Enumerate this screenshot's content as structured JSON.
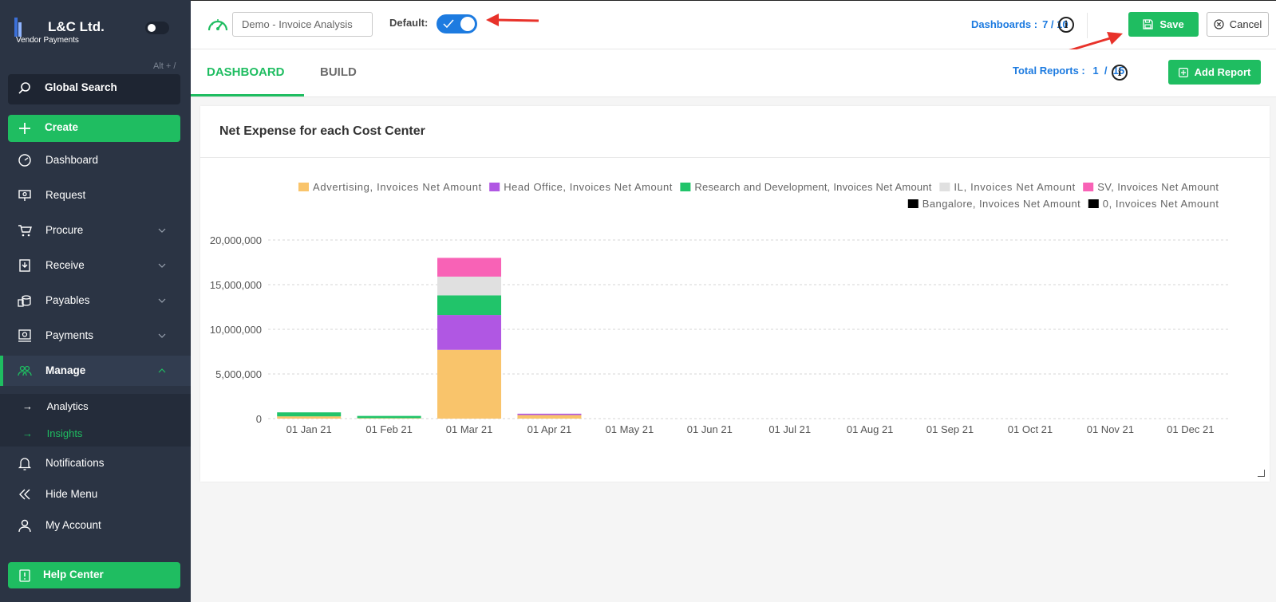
{
  "sidebar": {
    "brand_name": "L&C Ltd.",
    "brand_sub": "Vendor Payments",
    "shortcut_hint": "Alt + /",
    "search_label": "Global Search",
    "create_label": "Create",
    "items": [
      {
        "label": "Dashboard",
        "icon": "gauge-icon"
      },
      {
        "label": "Request",
        "icon": "request-icon"
      },
      {
        "label": "Procure",
        "icon": "cart-icon"
      },
      {
        "label": "Receive",
        "icon": "receive-icon"
      },
      {
        "label": "Payables",
        "icon": "coins-icon"
      },
      {
        "label": "Payments",
        "icon": "payments-icon"
      },
      {
        "label": "Manage",
        "icon": "users-icon"
      }
    ],
    "submenu": [
      {
        "label": "Analytics",
        "arrow": "→"
      },
      {
        "label": "Insights",
        "arrow": "→"
      }
    ],
    "notifications_label": "Notifications",
    "hide_menu_label": "Hide Menu",
    "account_label": "My Account",
    "help_label": "Help Center"
  },
  "topbar": {
    "dashboard_name": "Demo - Invoice Analysis",
    "default_label": "Default:",
    "default_on": true,
    "dashboards_label": "Dashboards :",
    "dashboards_value": "7 / 10",
    "info_glyph": "i",
    "save_label": "Save",
    "cancel_label": "Cancel"
  },
  "tabs": {
    "dashboard": "DASHBOARD",
    "build": "BUILD",
    "total_reports_label": "Total Reports :",
    "total_reports_value": "1  /  15",
    "add_report_label": "Add Report"
  },
  "report": {
    "title": "Net Expense for each Cost Center"
  },
  "colors": {
    "accent_green": "#1fbd61",
    "accent_blue": "#1d7be0",
    "sidebar_bg": "#2b3444",
    "annotation_red": "#e8322a"
  },
  "chart_data": {
    "type": "bar",
    "stacked": true,
    "title": "Net Expense for each Cost Center",
    "xlabel": "",
    "ylabel": "",
    "ylim": [
      0,
      20000000
    ],
    "yticks": [
      0,
      5000000,
      10000000,
      15000000,
      20000000
    ],
    "ytick_labels": [
      "0",
      "5,000,000",
      "10,000,000",
      "15,000,000",
      "20,000,000"
    ],
    "grid": true,
    "legend_position": "top-right",
    "categories": [
      "01 Jan 21",
      "01 Feb 21",
      "01 Mar 21",
      "01 Apr 21",
      "01 May 21",
      "01 Jun 21",
      "01 Jul 21",
      "01 Aug 21",
      "01 Sep 21",
      "01 Oct 21",
      "01 Nov 21",
      "01 Dec 21"
    ],
    "series": [
      {
        "name": "Advertising, Invoices Net Amount",
        "color": "#f9c46b",
        "values": [
          250000,
          50000,
          7700000,
          400000,
          0,
          0,
          0,
          0,
          0,
          0,
          0,
          0
        ]
      },
      {
        "name": "Head Office, Invoices Net Amount",
        "color": "#b057e3",
        "values": [
          0,
          0,
          3900000,
          150000,
          0,
          0,
          0,
          0,
          0,
          0,
          0,
          0
        ]
      },
      {
        "name": "Research and Development, Invoices Net Amount",
        "color": "#21c46a",
        "values": [
          450000,
          250000,
          2200000,
          0,
          0,
          0,
          0,
          0,
          0,
          0,
          0,
          0
        ]
      },
      {
        "name": "IL, Invoices Net Amount",
        "color": "#e0e0e0",
        "values": [
          0,
          0,
          2100000,
          0,
          0,
          0,
          0,
          0,
          0,
          0,
          0,
          0
        ]
      },
      {
        "name": "SV, Invoices Net Amount",
        "color": "#f862b6",
        "values": [
          0,
          0,
          2100000,
          0,
          0,
          0,
          0,
          0,
          0,
          0,
          0,
          0
        ]
      },
      {
        "name": "Bangalore, Invoices Net Amount",
        "color": "#000000",
        "values": [
          0,
          0,
          0,
          0,
          0,
          0,
          0,
          0,
          0,
          0,
          0,
          0
        ]
      },
      {
        "name": "0, Invoices Net Amount",
        "color": "#000000",
        "values": [
          0,
          0,
          0,
          0,
          0,
          0,
          0,
          0,
          0,
          0,
          0,
          0
        ]
      }
    ]
  }
}
